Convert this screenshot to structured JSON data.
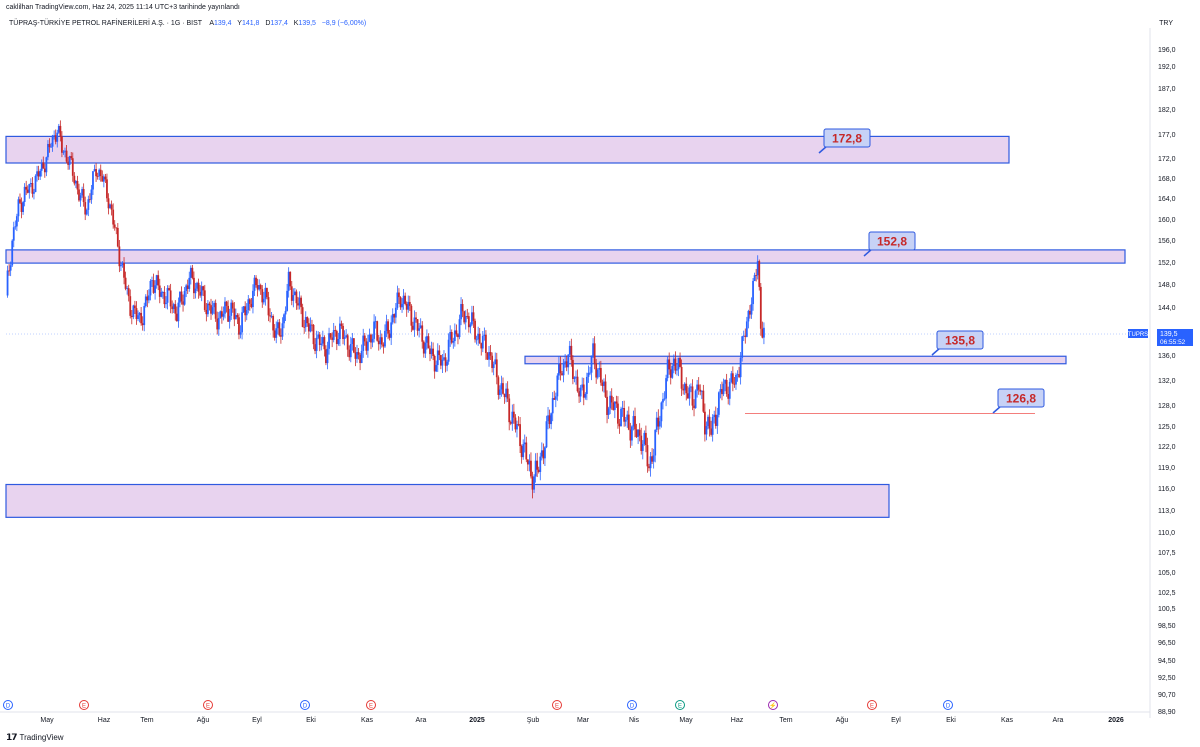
{
  "header": {
    "published": "caklilhan TradingView.com, Haz 24, 2025 11:14 UTC+3 tarihinde yayınlandı",
    "symbol_title": "TÜPRAŞ-TÜRKİYE PETROL RAFİNERİLERİ A.Ş. · 1G · BIST",
    "ohlc": [
      {
        "label": "A",
        "value": "139,4"
      },
      {
        "label": "Y",
        "value": "141,8"
      },
      {
        "label": "D",
        "value": "137,4"
      },
      {
        "label": "K",
        "value": "139,5"
      }
    ],
    "change": "−8,9 (−6,00%)",
    "currency": "TRY"
  },
  "footer": {
    "logo_text": "TradingView"
  },
  "colors": {
    "up": "#2962ff",
    "down": "#c62828",
    "zone_fill": "#e8d3ef",
    "zone_border": "#2f5ae0",
    "label_fill": "#c7d2f6",
    "label_text": "#c62828",
    "axis_text": "#131722"
  },
  "chart_data": {
    "type": "candlestick",
    "symbol": "TUPRS",
    "interval": "1G",
    "y_axis_labels": [
      "196,0",
      "192,0",
      "187,0",
      "182,0",
      "177,0",
      "172,0",
      "168,0",
      "164,0",
      "160,0",
      "156,0",
      "152,0",
      "148,0",
      "144,0",
      "140,0",
      "136,0",
      "132,0",
      "128,0",
      "125,0",
      "122,0",
      "119,0",
      "116,0",
      "113,0",
      "110,0",
      "107,5",
      "105,0",
      "102,5",
      "100,5",
      "98,50",
      "96,50",
      "94,50",
      "92,50",
      "90,70",
      "88,90"
    ],
    "x_axis_labels": [
      "May",
      "Haz",
      "Tem",
      "Ağu",
      "Eyl",
      "Eki",
      "Kas",
      "Ara",
      "2025",
      "Şub",
      "Mar",
      "Nis",
      "May",
      "Haz",
      "Tem",
      "Ağu",
      "Eyl",
      "Eki",
      "Kas",
      "Ara",
      "2026"
    ],
    "event_markers": [
      {
        "label": "D",
        "month": "Nis 2024",
        "kind": "dividend"
      },
      {
        "label": "E",
        "month": "Haz 2024",
        "kind": "earnings"
      },
      {
        "label": "E",
        "month": "Ağu 2024",
        "kind": "earnings"
      },
      {
        "label": "D",
        "month": "Eki 2024",
        "kind": "dividend"
      },
      {
        "label": "E",
        "month": "Kas 2024",
        "kind": "earnings"
      },
      {
        "label": "E",
        "month": "Mar 2025",
        "kind": "earnings"
      },
      {
        "label": "D",
        "month": "Nis 2025",
        "kind": "dividend"
      },
      {
        "label": "E",
        "month": "May 2025",
        "kind": "earnings"
      },
      {
        "label": "⚡",
        "month": "Tem 2025",
        "kind": "split"
      },
      {
        "label": "E",
        "month": "Ağu 2025",
        "kind": "earnings"
      },
      {
        "label": "D",
        "month": "Eki 2025",
        "kind": "dividend"
      }
    ],
    "last_price": {
      "symbol": "TUPRS",
      "value": "139,5",
      "countdown": "06:55:52"
    },
    "zones": [
      {
        "from": 171.0,
        "to": 176.5,
        "start": "Nis 2024",
        "end": "Ağu 2025"
      },
      {
        "from": 151.8,
        "to": 154.2,
        "start": "Nis 2024",
        "end": "Ekim 2025"
      },
      {
        "from": 134.6,
        "to": 135.8,
        "start": "Oca 2025",
        "end": "Ekim 2025"
      },
      {
        "from": 112.0,
        "to": 116.5,
        "start": "Nis 2024",
        "end": "Ağu 2025"
      }
    ],
    "level_labels": [
      "172,8",
      "152,8",
      "135,8",
      "126,8"
    ],
    "level_values": [
      172.8,
      152.8,
      135.8,
      126.8
    ],
    "red_line": 126.8,
    "price_path": [
      [
        0,
        146
      ],
      [
        4,
        156
      ],
      [
        8,
        162
      ],
      [
        12,
        165
      ],
      [
        16,
        166
      ],
      [
        20,
        168
      ],
      [
        26,
        172
      ],
      [
        30,
        176
      ],
      [
        33,
        178
      ],
      [
        36,
        174
      ],
      [
        40,
        172
      ],
      [
        44,
        168
      ],
      [
        48,
        164
      ],
      [
        52,
        162
      ],
      [
        55,
        166
      ],
      [
        58,
        170
      ],
      [
        62,
        168
      ],
      [
        66,
        164
      ],
      [
        70,
        158
      ],
      [
        74,
        152
      ],
      [
        78,
        146
      ],
      [
        82,
        143
      ],
      [
        86,
        142
      ],
      [
        90,
        144
      ],
      [
        94,
        149
      ],
      [
        98,
        147
      ],
      [
        102,
        146
      ],
      [
        106,
        145
      ],
      [
        110,
        143
      ],
      [
        114,
        146
      ],
      [
        118,
        149
      ],
      [
        122,
        148
      ],
      [
        126,
        146
      ],
      [
        130,
        144
      ],
      [
        134,
        143
      ],
      [
        138,
        142
      ],
      [
        142,
        144
      ],
      [
        146,
        143
      ],
      [
        150,
        141
      ],
      [
        154,
        143
      ],
      [
        158,
        146
      ],
      [
        162,
        148
      ],
      [
        166,
        146
      ],
      [
        170,
        143
      ],
      [
        174,
        139
      ],
      [
        178,
        141
      ],
      [
        182,
        148
      ],
      [
        186,
        146
      ],
      [
        190,
        143
      ],
      [
        194,
        141
      ],
      [
        198,
        139
      ],
      [
        202,
        138
      ],
      [
        206,
        137
      ],
      [
        210,
        139
      ],
      [
        214,
        140
      ],
      [
        218,
        139
      ],
      [
        222,
        137
      ],
      [
        226,
        136
      ],
      [
        230,
        137
      ],
      [
        234,
        139
      ],
      [
        238,
        140
      ],
      [
        242,
        138
      ],
      [
        246,
        140
      ],
      [
        250,
        143
      ],
      [
        254,
        146
      ],
      [
        258,
        144
      ],
      [
        262,
        142
      ],
      [
        266,
        140
      ],
      [
        270,
        138
      ],
      [
        274,
        136
      ],
      [
        278,
        135
      ],
      [
        282,
        135
      ],
      [
        286,
        138
      ],
      [
        290,
        140
      ],
      [
        294,
        143
      ],
      [
        298,
        142
      ],
      [
        302,
        140
      ],
      [
        306,
        138
      ],
      [
        310,
        137
      ],
      [
        314,
        134
      ],
      [
        318,
        131
      ],
      [
        322,
        129
      ],
      [
        326,
        126
      ],
      [
        330,
        124
      ],
      [
        334,
        121
      ],
      [
        338,
        118
      ],
      [
        342,
        118
      ],
      [
        346,
        122
      ],
      [
        350,
        126
      ],
      [
        354,
        131
      ],
      [
        358,
        134
      ],
      [
        362,
        136
      ],
      [
        366,
        133
      ],
      [
        370,
        129
      ],
      [
        374,
        132
      ],
      [
        378,
        136
      ],
      [
        382,
        133
      ],
      [
        386,
        129
      ],
      [
        390,
        128
      ],
      [
        394,
        127
      ],
      [
        398,
        126
      ],
      [
        402,
        125
      ],
      [
        406,
        124
      ],
      [
        410,
        123
      ],
      [
        414,
        119
      ],
      [
        418,
        123
      ],
      [
        422,
        128
      ],
      [
        426,
        133
      ],
      [
        430,
        135
      ],
      [
        434,
        133
      ],
      [
        438,
        130
      ],
      [
        442,
        129
      ],
      [
        446,
        131
      ],
      [
        450,
        126
      ],
      [
        454,
        124
      ],
      [
        458,
        128
      ],
      [
        462,
        131
      ],
      [
        466,
        131
      ],
      [
        470,
        132
      ],
      [
        474,
        137
      ],
      [
        478,
        143
      ],
      [
        482,
        148
      ],
      [
        484,
        153
      ],
      [
        486,
        141
      ],
      [
        488,
        139.5
      ]
    ],
    "x_domain": [
      0,
      500
    ],
    "y_range": [
      88.9,
      198
    ]
  }
}
